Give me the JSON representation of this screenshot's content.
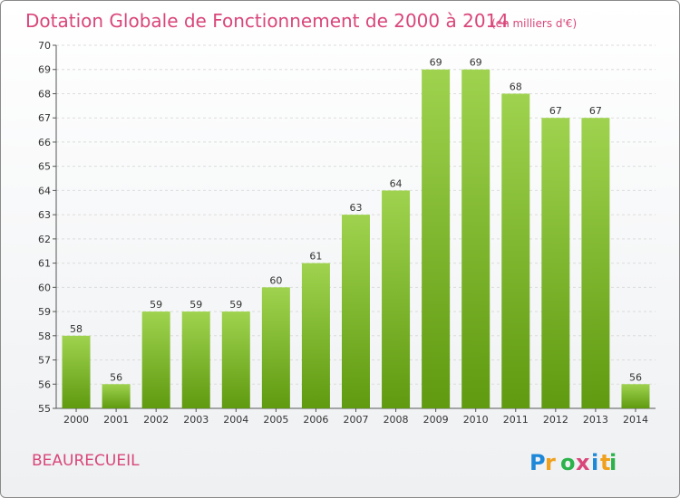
{
  "chart_data": {
    "type": "bar",
    "title": "Dotation Globale de Fonctionnement de 2000 à 2014",
    "unit": "(en milliers d'€)",
    "categories": [
      "2000",
      "2001",
      "2002",
      "2003",
      "2004",
      "2005",
      "2006",
      "2007",
      "2008",
      "2009",
      "2010",
      "2011",
      "2012",
      "2013",
      "2014"
    ],
    "values": [
      58,
      56,
      59,
      59,
      59,
      60,
      61,
      63,
      64,
      69,
      69,
      68,
      67,
      67,
      56
    ],
    "ylim": [
      55,
      70
    ],
    "ytick_step": 1,
    "grid": true,
    "bar_color": "#8cc63f"
  },
  "footer": {
    "commune": "BEAURECUEIL",
    "logo": "Proxiti"
  }
}
